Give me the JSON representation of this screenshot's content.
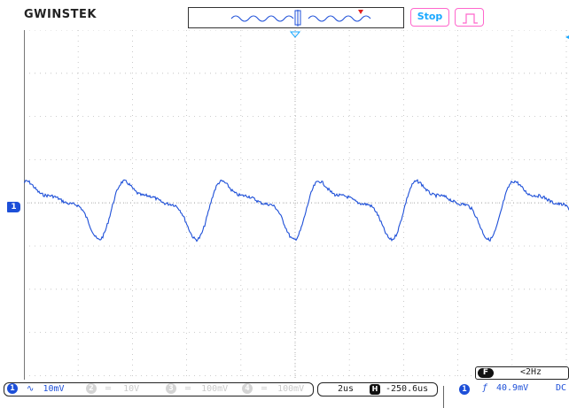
{
  "header": {
    "brand": "GWINSTEK",
    "run_state": "Stop"
  },
  "channels": [
    {
      "num": "1",
      "coupling_icon": "ac-coupling-icon",
      "scale": "10mV",
      "active": true
    },
    {
      "num": "2",
      "coupling_icon": "dc-coupling-icon",
      "scale": "10V",
      "active": false
    },
    {
      "num": "3",
      "coupling_icon": "dc-coupling-icon",
      "scale": "100mV",
      "active": false
    },
    {
      "num": "4",
      "coupling_icon": "dc-coupling-icon",
      "scale": "100mV",
      "active": false
    }
  ],
  "timebase": {
    "scale": "2us",
    "position_icon": "horizontal-position-icon",
    "position": "-250.6us"
  },
  "frequency": {
    "icon": "frequency-counter-icon",
    "value": "<2Hz"
  },
  "trigger": {
    "source": "1",
    "slope_icon": "rising-edge-icon",
    "level": "40.9mV",
    "coupling": "DC"
  },
  "colors": {
    "ch1": "#1d4fd8",
    "trigger_marker": "#1aa8ff",
    "button_border": "#ff66cc",
    "grid": "#bdbdbd"
  }
}
